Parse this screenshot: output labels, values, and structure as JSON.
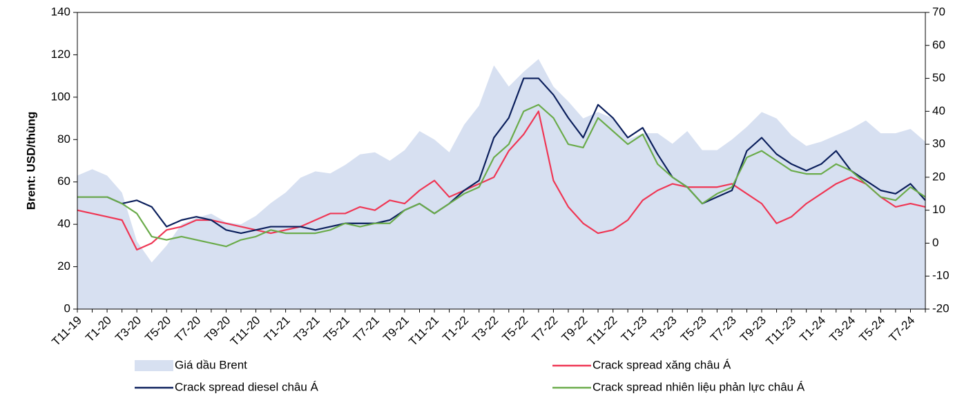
{
  "chart_data": {
    "type": "line",
    "ylabel": "Brent: USD/thùng",
    "categories": [
      "T11-19",
      null,
      "T1-20",
      null,
      "T3-20",
      null,
      "T5-20",
      null,
      "T7-20",
      null,
      "T9-20",
      null,
      "T11-20",
      null,
      "T1-21",
      null,
      "T3-21",
      null,
      "T5-21",
      null,
      "T7-21",
      null,
      "T9-21",
      null,
      "T11-21",
      null,
      "T1-22",
      null,
      "T3-22",
      null,
      "T5-22",
      null,
      "T7-22",
      null,
      "T9-22",
      null,
      "T11-22",
      null,
      "T1-23",
      null,
      "T3-23",
      null,
      "T5-23",
      null,
      "T7-23",
      null,
      "T9-23",
      null,
      "T11-23",
      null,
      "T1-24",
      null,
      "T3-24",
      null,
      "T5-24",
      null,
      "T7-24",
      null
    ],
    "ylim": [
      0,
      140
    ],
    "yticks": [
      0,
      20,
      40,
      60,
      80,
      100,
      120,
      140
    ],
    "y2lim": [
      -20,
      70
    ],
    "y2ticks": [
      -20,
      -10,
      0,
      10,
      20,
      30,
      40,
      50,
      60,
      70
    ],
    "series": [
      {
        "name": "Giá dầu Brent",
        "type": "area",
        "color": "#d7e0f1",
        "values": [
          63,
          66,
          63,
          55,
          32,
          22,
          30,
          40,
          43,
          45,
          41,
          40,
          44,
          50,
          55,
          62,
          65,
          64,
          68,
          73,
          74,
          70,
          75,
          84,
          80,
          74,
          87,
          96,
          115,
          105,
          112,
          118,
          105,
          98,
          90,
          93,
          90,
          80,
          83,
          83,
          78,
          84,
          75,
          75,
          80,
          86,
          93,
          90,
          82,
          77,
          79,
          82,
          85,
          89,
          83,
          83,
          85,
          79
        ]
      },
      {
        "name": "Crack spread xăng châu Á",
        "type": "line",
        "axis": "y2",
        "color": "#ef3654",
        "values": [
          10,
          9,
          8,
          7,
          -2,
          0,
          4,
          5,
          7,
          7,
          6,
          5,
          4,
          3,
          4,
          5,
          7,
          9,
          9,
          11,
          10,
          13,
          12,
          16,
          19,
          14,
          16,
          18,
          20,
          28,
          33,
          40,
          19,
          11,
          6,
          3,
          4,
          7,
          13,
          16,
          18,
          17,
          17,
          17,
          18,
          15,
          12,
          6,
          8,
          12,
          15,
          18,
          20,
          18,
          14,
          11,
          12,
          11
        ]
      },
      {
        "name": "Crack spread diesel châu Á",
        "type": "line",
        "axis": "y2",
        "color": "#0b1f5c",
        "values": [
          14,
          14,
          14,
          12,
          13,
          11,
          5,
          7,
          8,
          7,
          4,
          3,
          4,
          5,
          5,
          5,
          4,
          5,
          6,
          6,
          6,
          7,
          10,
          12,
          9,
          12,
          16,
          19,
          32,
          38,
          50,
          50,
          45,
          38,
          32,
          42,
          38,
          32,
          35,
          27,
          20,
          17,
          12,
          14,
          16,
          28,
          32,
          27,
          24,
          22,
          24,
          28,
          22,
          19,
          16,
          15,
          18,
          13
        ]
      },
      {
        "name": "Crack spread nhiên liệu phản lực châu Á",
        "type": "line",
        "axis": "y2",
        "color": "#6aab4a",
        "values": [
          14,
          14,
          14,
          12,
          9,
          2,
          1,
          2,
          1,
          0,
          -1,
          1,
          2,
          4,
          3,
          3,
          3,
          4,
          6,
          5,
          6,
          6,
          10,
          12,
          9,
          12,
          15,
          17,
          26,
          30,
          40,
          42,
          38,
          30,
          29,
          38,
          34,
          30,
          33,
          24,
          20,
          17,
          12,
          15,
          17,
          26,
          28,
          25,
          22,
          21,
          21,
          24,
          22,
          18,
          14,
          13,
          17,
          14
        ]
      }
    ]
  }
}
